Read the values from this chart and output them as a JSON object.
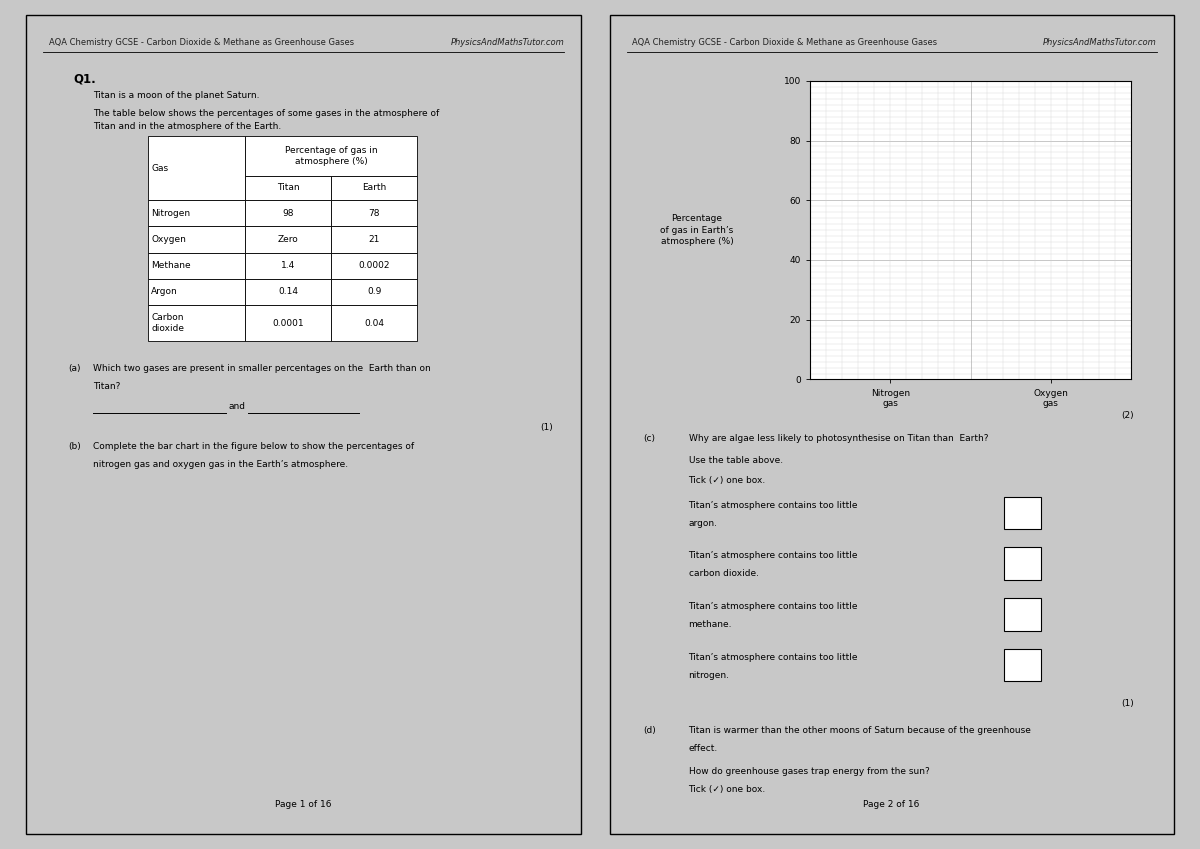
{
  "page_bg": "#ffffff",
  "bg_outer": "#c8c8c8",
  "header_left": "AQA Chemistry GCSE - Carbon Dioxide & Methane as Greenhouse Gases",
  "header_right": "PhysicsAndMathsTutor.com",
  "page1_footer": "Page 1 of 16",
  "page2_footer": "Page 2 of 16",
  "q1_label": "Q1.",
  "q1_intro": "Titan is a moon of the planet Saturn.",
  "q1_table_intro1": "The table below shows the percentages of some gases in the atmosphere of",
  "q1_table_intro2": "Titan and in the atmosphere of the Earth.",
  "table_rows": [
    [
      "Nitrogen",
      "98",
      "78"
    ],
    [
      "Oxygen",
      "Zero",
      "21"
    ],
    [
      "Methane",
      "1.4",
      "0.0002"
    ],
    [
      "Argon",
      "0.14",
      "0.9"
    ],
    [
      "Carbon\ndioxide",
      "0.0001",
      "0.04"
    ]
  ],
  "qa_label": "(a)",
  "qa_line1": "Which two gases are present in smaller percentages on the  Earth than on",
  "qa_line2": "Titan?",
  "qa_marks": "(1)",
  "qb_label": "(b)",
  "qb_line1": "Complete the bar chart in the figure below to show the percentages of",
  "qb_line2": "nitrogen gas and oxygen gas in the Earth’s atmosphere.",
  "graph_ylabel": "Percentage\nof gas in Earth’s\natmosphere (%)",
  "graph_yticks": [
    0,
    20,
    40,
    60,
    80,
    100
  ],
  "graph_xtick_labels": [
    "Nitrogen\ngas",
    "Oxygen\ngas"
  ],
  "graph_marks": "(2)",
  "qc_label": "(c)",
  "qc_line1": "Why are algae less likely to photosynthesise on Titan than  Earth?",
  "qc_sub1": "Use the table above.",
  "qc_sub2": "Tick (✓) one box.",
  "qc_options": [
    [
      "Titan’s atmosphere contains too little",
      "argon."
    ],
    [
      "Titan’s atmosphere contains too little",
      "carbon dioxide."
    ],
    [
      "Titan’s atmosphere contains too little",
      "methane."
    ],
    [
      "Titan’s atmosphere contains too little",
      "nitrogen."
    ]
  ],
  "qc_marks": "(1)",
  "qd_label": "(d)",
  "qd_line1": "Titan is warmer than the other moons of Saturn because of the greenhouse",
  "qd_line2": "effect.",
  "qd_sub1": "How do greenhouse gases trap energy from the sun?",
  "qd_sub2": "Tick (✓) one box.",
  "fs_hdr": 6.0,
  "fs_body": 6.5,
  "fs_q": 7.5,
  "fs_bold": 8.5,
  "fs_table": 6.5,
  "grid_minor": "#d0d0d0",
  "grid_major": "#b0b0b0"
}
